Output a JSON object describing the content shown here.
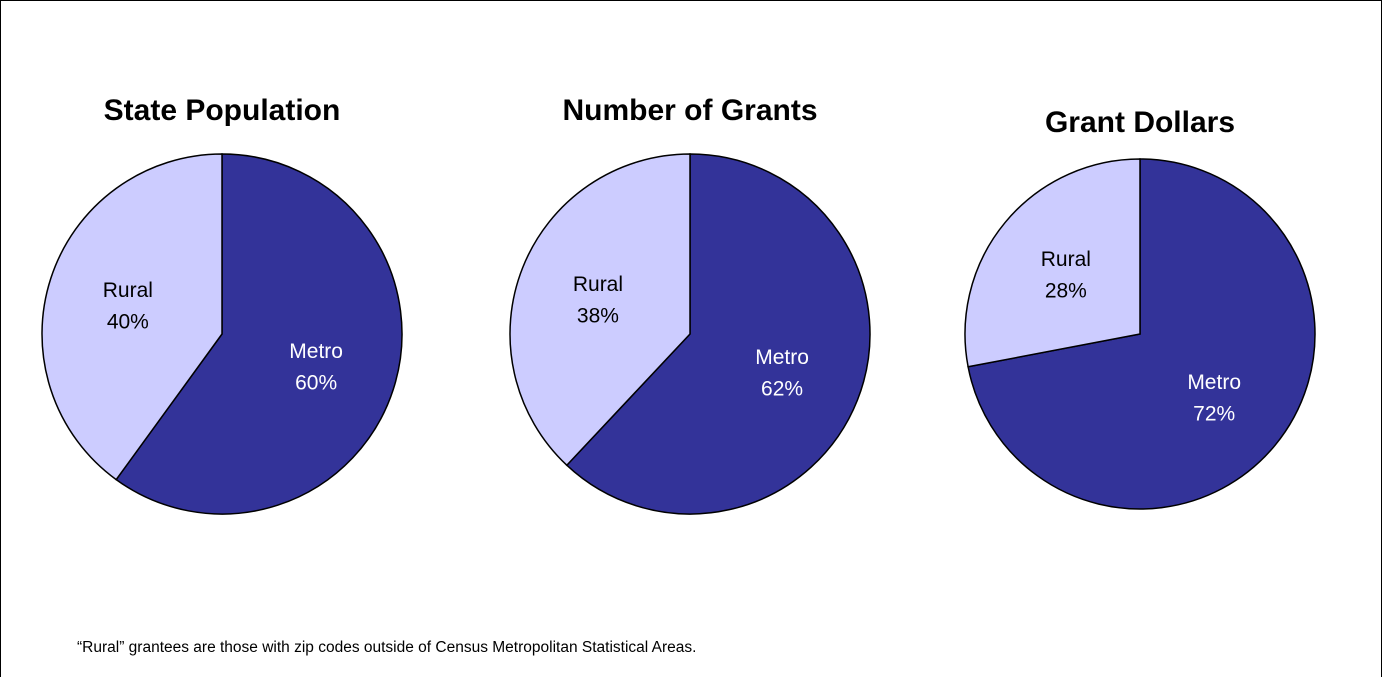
{
  "chart_data": [
    {
      "type": "pie",
      "title": "State Population",
      "categories": [
        "Metro",
        "Rural"
      ],
      "values": [
        60,
        40
      ],
      "value_labels": [
        "60%",
        "40%"
      ],
      "colors": [
        "#333399",
        "#ccccff"
      ]
    },
    {
      "type": "pie",
      "title": "Number of Grants",
      "categories": [
        "Metro",
        "Rural"
      ],
      "values": [
        62,
        38
      ],
      "value_labels": [
        "62%",
        "38%"
      ],
      "colors": [
        "#333399",
        "#ccccff"
      ]
    },
    {
      "type": "pie",
      "title": "Grant Dollars",
      "categories": [
        "Metro",
        "Rural"
      ],
      "values": [
        72,
        28
      ],
      "value_labels": [
        "72%",
        "28%"
      ],
      "colors": [
        "#333399",
        "#ccccff"
      ]
    }
  ],
  "footnote": "“Rural” grantees are those with zip codes outside of Census Metropolitan Statistical Areas."
}
